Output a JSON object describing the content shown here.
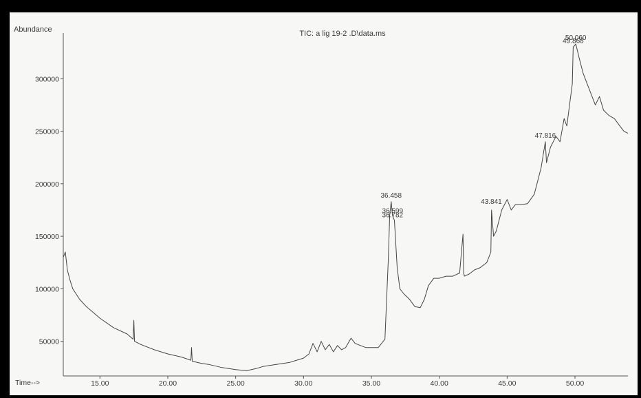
{
  "chart_data": {
    "type": "line",
    "title": "TIC: a lig 19-2 .D\\data.ms",
    "ylabel": "Abundance",
    "xlabel": "Time-->",
    "xlim": [
      12.3,
      53.9
    ],
    "ylim": [
      17000,
      350000
    ],
    "x_ticks": [
      {
        "value": 15,
        "label": "15.00"
      },
      {
        "value": 20,
        "label": "20.00"
      },
      {
        "value": 25,
        "label": "25.00"
      },
      {
        "value": 30,
        "label": "30.00"
      },
      {
        "value": 35,
        "label": "35.00"
      },
      {
        "value": 40,
        "label": "40.00"
      },
      {
        "value": 45,
        "label": "45.00"
      },
      {
        "value": 50,
        "label": "50.00"
      }
    ],
    "y_ticks": [
      {
        "value": 50000,
        "label": "50000"
      },
      {
        "value": 100000,
        "label": "100000"
      },
      {
        "value": 150000,
        "label": "150000"
      },
      {
        "value": 200000,
        "label": "200000"
      },
      {
        "value": 250000,
        "label": "250000"
      },
      {
        "value": 300000,
        "label": "300000"
      }
    ],
    "series": [
      {
        "color": "#444444",
        "x": [
          12.3,
          12.45,
          12.6,
          12.8,
          13.0,
          13.5,
          14.0,
          15.0,
          16.0,
          17.0,
          17.45,
          17.5,
          17.55,
          18.0,
          19.0,
          20.0,
          21.0,
          21.7,
          21.75,
          21.8,
          22.5,
          23.0,
          24.0,
          25.0,
          25.8,
          26.5,
          27.0,
          27.5,
          28.0,
          28.5,
          29.0,
          29.5,
          30.0,
          30.4,
          30.7,
          31.0,
          31.3,
          31.6,
          31.9,
          32.2,
          32.5,
          32.8,
          33.1,
          33.5,
          33.8,
          34.2,
          34.6,
          35.0,
          35.5,
          36.0,
          36.25,
          36.35,
          36.458,
          36.55,
          36.7,
          36.9,
          37.1,
          37.4,
          37.8,
          38.2,
          38.6,
          38.9,
          39.2,
          39.6,
          40.0,
          40.5,
          41.0,
          41.5,
          41.75,
          41.8,
          41.85,
          42.2,
          42.6,
          43.0,
          43.5,
          43.8,
          43.85,
          44.0,
          44.2,
          44.6,
          45.0,
          45.3,
          45.6,
          46.0,
          46.5,
          47.0,
          47.5,
          47.816,
          47.9,
          48.2,
          48.6,
          48.9,
          49.2,
          49.4,
          49.6,
          49.8,
          49.868,
          50.06,
          50.3,
          50.6,
          50.9,
          51.2,
          51.5,
          51.8,
          52.1,
          52.5,
          52.9,
          53.3,
          53.6,
          53.9
        ],
        "y": [
          130000,
          135000,
          118000,
          108000,
          100000,
          90000,
          83000,
          72000,
          63000,
          57000,
          52000,
          70000,
          50000,
          47000,
          42000,
          38000,
          35000,
          32000,
          44000,
          31000,
          29000,
          28000,
          25000,
          23000,
          22000,
          24000,
          26000,
          27000,
          28000,
          29000,
          30000,
          32000,
          34000,
          38000,
          48000,
          40000,
          50000,
          42000,
          47000,
          40000,
          46000,
          42000,
          44000,
          53000,
          48000,
          46000,
          44000,
          44000,
          44000,
          52000,
          130000,
          170000,
          183000,
          170000,
          165000,
          120000,
          100000,
          95000,
          90000,
          83000,
          82000,
          90000,
          103000,
          110000,
          110000,
          112000,
          112000,
          115000,
          152000,
          115000,
          112000,
          114000,
          118000,
          120000,
          125000,
          135000,
          175000,
          150000,
          155000,
          175000,
          185000,
          175000,
          180000,
          180000,
          181000,
          190000,
          215000,
          240000,
          220000,
          235000,
          245000,
          240000,
          262000,
          255000,
          275000,
          295000,
          330000,
          333000,
          320000,
          305000,
          295000,
          285000,
          275000,
          283000,
          270000,
          265000,
          262000,
          255000,
          250000,
          248000
        ]
      }
    ],
    "peak_labels": [
      {
        "x": 36.458,
        "y": 183000,
        "text": "36.458"
      },
      {
        "x": 36.558,
        "y": 168000,
        "text": "36.599"
      },
      {
        "x": 36.562,
        "y": 164000,
        "text": "36.782"
      },
      {
        "x": 43.84,
        "y": 177000,
        "text": "43.841"
      },
      {
        "x": 47.816,
        "y": 240000,
        "text": "47.816"
      },
      {
        "x": 50.06,
        "y": 333000,
        "text": "50.060"
      },
      {
        "x": 49.868,
        "y": 330000,
        "text": "49.868"
      }
    ]
  }
}
